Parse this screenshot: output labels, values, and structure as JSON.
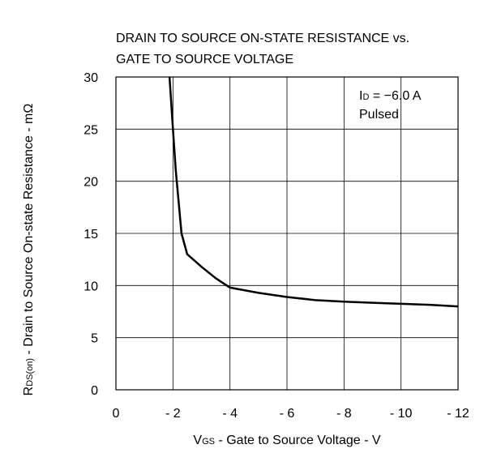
{
  "chart_data": {
    "type": "line",
    "title_lines": [
      "DRAIN TO SOURCE ON-STATE RESISTANCE vs.",
      "GATE TO SOURCE VOLTAGE"
    ],
    "x_label": [
      "V",
      "GS",
      " - Gate to Source Voltage - V"
    ],
    "y_label": [
      "R",
      "DS(on)",
      " - Drain to Source On-state Resistance - mΩ"
    ],
    "annotation": {
      "line1": [
        "I",
        "D",
        " = −6.0 A"
      ],
      "line2": "Pulsed"
    },
    "x": [
      -1.88,
      -2.0,
      -2.1,
      -2.2,
      -2.3,
      -2.5,
      -3.0,
      -3.5,
      -4.0,
      -5.0,
      -6.0,
      -7.0,
      -8.0,
      -9.0,
      -10.0,
      -11.0,
      -12.0
    ],
    "values": [
      30,
      25,
      21,
      18,
      15,
      13,
      11.8,
      10.7,
      9.8,
      9.3,
      8.9,
      8.6,
      8.45,
      8.35,
      8.25,
      8.15,
      8.0
    ],
    "color": "#000000",
    "xlim": [
      0,
      -12
    ],
    "xticks": [
      0,
      {
        "value": -2,
        "label": "- 2"
      },
      {
        "value": -4,
        "label": "- 4"
      },
      {
        "value": -6,
        "label": "- 6"
      },
      {
        "value": -8,
        "label": "- 8"
      },
      {
        "value": -10,
        "label": "- 10"
      },
      {
        "value": -12,
        "label": "- 12"
      }
    ],
    "ylim": [
      0,
      30
    ],
    "yticks": [
      0,
      5,
      10,
      15,
      20,
      25,
      30
    ],
    "grid": true
  }
}
